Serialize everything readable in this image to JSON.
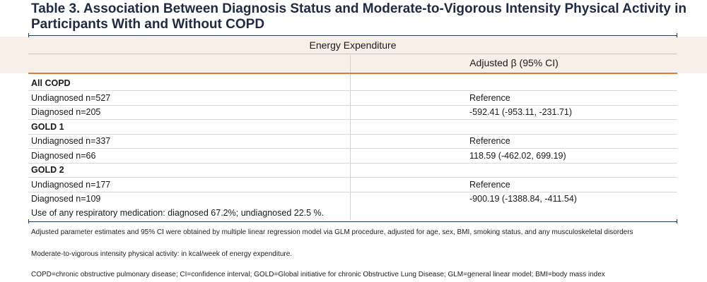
{
  "title": "Table 3. Association Between Diagnosis Status and Moderate-to-Vigorous Intensity Physical Activity in Participants With and Without COPD",
  "table": {
    "group_header": "Energy Expenditure",
    "column_header": "Adjusted β (95% CI)",
    "rows": [
      {
        "label": "All COPD",
        "value": "",
        "group": true
      },
      {
        "label": "Undiagnosed n=527",
        "value": "Reference"
      },
      {
        "label": "Diagnosed n=205",
        "value": "-592.41 (-953.11, -231.71)"
      },
      {
        "label": "GOLD 1",
        "value": "",
        "group": true
      },
      {
        "label": "Undiagnosed n=337",
        "value": "Reference"
      },
      {
        "label": "Diagnosed n=66",
        "value": "118.59 (-462.02, 699.19)"
      },
      {
        "label": "GOLD 2",
        "value": "",
        "group": true
      },
      {
        "label": "Undiagnosed n=177",
        "value": "Reference"
      },
      {
        "label": "Diagnosed n=109",
        "value": "-900.19 (-1388.84, -411.54)"
      }
    ],
    "note": "Use of any respiratory medication: diagnosed 67.2%; undiagnosed 22.5 %."
  },
  "footnotes": [
    "Adjusted parameter estimates and 95% CI were obtained by multiple linear regression model via GLM procedure, adjusted for age, sex, BMI, smoking status, and any musculoskeletal disorders",
    "Moderate-to-vigorous intensity physical activity: in kcal/week of energy expenditure.",
    "COPD=chronic obstructive pulmonary disease; CI=confidence interval; GOLD=Global initiative for chronic Obstructive Lung Disease; GLM=general linear model; BMI=body mass index"
  ]
}
